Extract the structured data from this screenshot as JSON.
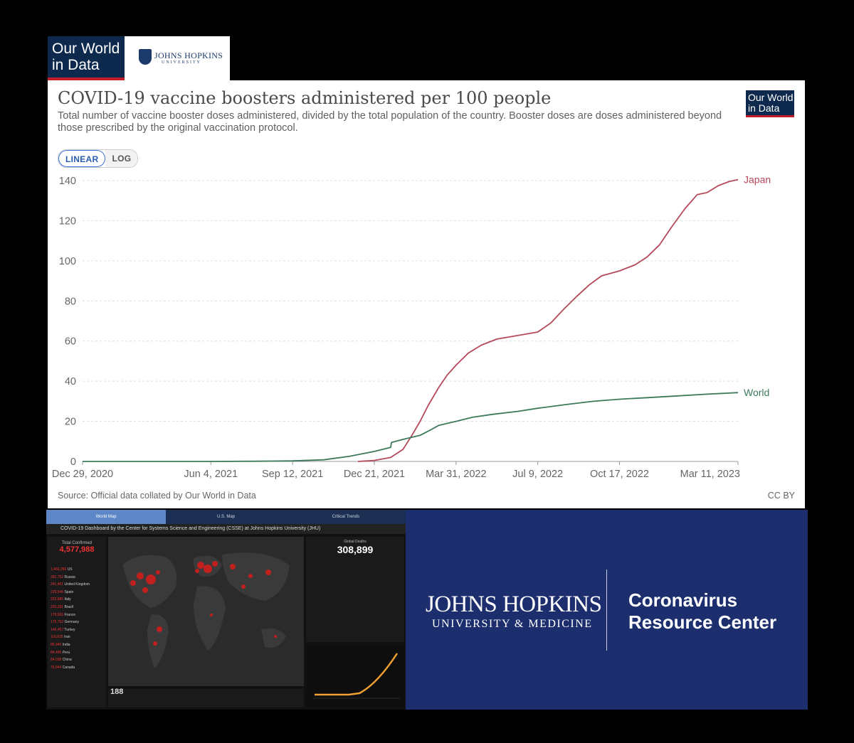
{
  "logos": {
    "owid_top": "Our World in Data",
    "jhu_top_name": "JOHNS HOPKINS",
    "jhu_top_sub": "UNIVERSITY",
    "owid_chart": "Our World in Data"
  },
  "chart": {
    "title": "COVID-19 vaccine boosters administered per 100 people",
    "subtitle": "Total number of vaccine booster doses administered, divided by the total population of the country. Booster doses are doses administered beyond those prescribed by the original vaccination protocol.",
    "toggle": {
      "linear": "LINEAR",
      "log": "LOG"
    },
    "source": "Source: Official data collated by Our World in Data",
    "license": "CC BY"
  },
  "chart_data": {
    "type": "line",
    "title": "COVID-19 vaccine boosters administered per 100 people",
    "xlabel": "",
    "ylabel": "",
    "xlim": [
      "2020-12-29",
      "2023-03-11"
    ],
    "ylim": [
      0,
      140
    ],
    "yticks": [
      0,
      20,
      40,
      60,
      80,
      100,
      120,
      140
    ],
    "xticks": [
      {
        "date": "2020-12-29",
        "label": "Dec 29, 2020"
      },
      {
        "date": "2021-06-04",
        "label": "Jun 4, 2021"
      },
      {
        "date": "2021-09-12",
        "label": "Sep 12, 2021"
      },
      {
        "date": "2021-12-21",
        "label": "Dec 21, 2021"
      },
      {
        "date": "2022-03-31",
        "label": "Mar 31, 2022"
      },
      {
        "date": "2022-07-09",
        "label": "Jul 9, 2022"
      },
      {
        "date": "2022-10-17",
        "label": "Oct 17, 2022"
      },
      {
        "date": "2023-03-11",
        "label": "Mar 11, 2023"
      }
    ],
    "grid": "horizontal",
    "legend": "end-of-line labels",
    "series": [
      {
        "name": "Japan",
        "color": "#b5485a",
        "points": [
          [
            "2021-12-01",
            0
          ],
          [
            "2021-12-21",
            0.5
          ],
          [
            "2022-01-10",
            2
          ],
          [
            "2022-01-25",
            6
          ],
          [
            "2022-02-05",
            13
          ],
          [
            "2022-02-15",
            20
          ],
          [
            "2022-02-25",
            28
          ],
          [
            "2022-03-10",
            37
          ],
          [
            "2022-03-20",
            43
          ],
          [
            "2022-03-31",
            48
          ],
          [
            "2022-04-15",
            54
          ],
          [
            "2022-05-01",
            58
          ],
          [
            "2022-05-20",
            61
          ],
          [
            "2022-06-10",
            62.5
          ],
          [
            "2022-07-09",
            64.5
          ],
          [
            "2022-07-25",
            69
          ],
          [
            "2022-08-10",
            76
          ],
          [
            "2022-08-25",
            82
          ],
          [
            "2022-09-10",
            88
          ],
          [
            "2022-09-25",
            92.5
          ],
          [
            "2022-10-17",
            95
          ],
          [
            "2022-11-05",
            98
          ],
          [
            "2022-11-20",
            102
          ],
          [
            "2022-12-05",
            108
          ],
          [
            "2022-12-20",
            117
          ],
          [
            "2023-01-05",
            126
          ],
          [
            "2023-01-20",
            133
          ],
          [
            "2023-02-01",
            134
          ],
          [
            "2023-02-15",
            137.5
          ],
          [
            "2023-02-28",
            139.5
          ],
          [
            "2023-03-11",
            140.5
          ]
        ]
      },
      {
        "name": "World",
        "color": "#3c7a5a",
        "points": [
          [
            "2020-12-29",
            0
          ],
          [
            "2021-06-04",
            0
          ],
          [
            "2021-08-01",
            0.1
          ],
          [
            "2021-09-12",
            0.3
          ],
          [
            "2021-10-20",
            0.8
          ],
          [
            "2021-11-20",
            2.5
          ],
          [
            "2021-12-21",
            5
          ],
          [
            "2022-01-10",
            7
          ],
          [
            "2022-01-11",
            9.5
          ],
          [
            "2022-01-25",
            11
          ],
          [
            "2022-02-15",
            13
          ],
          [
            "2022-03-01",
            16
          ],
          [
            "2022-03-10",
            18
          ],
          [
            "2022-03-31",
            20
          ],
          [
            "2022-04-20",
            22
          ],
          [
            "2022-05-15",
            23.5
          ],
          [
            "2022-06-15",
            25
          ],
          [
            "2022-07-09",
            26.5
          ],
          [
            "2022-08-15",
            28.5
          ],
          [
            "2022-09-15",
            30
          ],
          [
            "2022-10-17",
            31
          ],
          [
            "2022-11-20",
            31.8
          ],
          [
            "2022-12-20",
            32.5
          ],
          [
            "2023-01-30",
            33.5
          ],
          [
            "2023-03-11",
            34.3
          ]
        ]
      }
    ]
  },
  "dashboard": {
    "tabs": [
      "World Map",
      "U.S. Map",
      "Critical Trends"
    ],
    "title": "COVID-19 Dashboard by the Center for Systems Science and Engineering (CSSE) at Johns Hopkins University (JHU)",
    "total_confirmed_label": "Total Confirmed",
    "total_confirmed_value": "4,577,988",
    "countries": [
      {
        "n": "1,466,286",
        "c": "US"
      },
      {
        "n": "281,752",
        "c": "Russia"
      },
      {
        "n": "241,461",
        "c": "United Kingdom"
      },
      {
        "n": "229,540",
        "c": "Spain"
      },
      {
        "n": "223,885",
        "c": "Italy"
      },
      {
        "n": "220,291",
        "c": "Brazil"
      },
      {
        "n": "179,693",
        "c": "France"
      },
      {
        "n": "175,752",
        "c": "Germany"
      },
      {
        "n": "146,457",
        "c": "Turkey"
      },
      {
        "n": "116,635",
        "c": "Iran"
      },
      {
        "n": "85,940",
        "c": "India"
      },
      {
        "n": "84,495",
        "c": "Peru"
      },
      {
        "n": "84,038",
        "c": "China"
      },
      {
        "n": "76,944",
        "c": "Canada"
      }
    ],
    "global_deaths_label": "Global Deaths",
    "global_deaths_value": "308,899",
    "count": "188"
  },
  "banner": {
    "jhu": "JOHNS HOPKINS",
    "jhu_sub": "UNIVERSITY & MEDICINE",
    "title_line1": "Coronavirus",
    "title_line2": "Resource Center"
  }
}
